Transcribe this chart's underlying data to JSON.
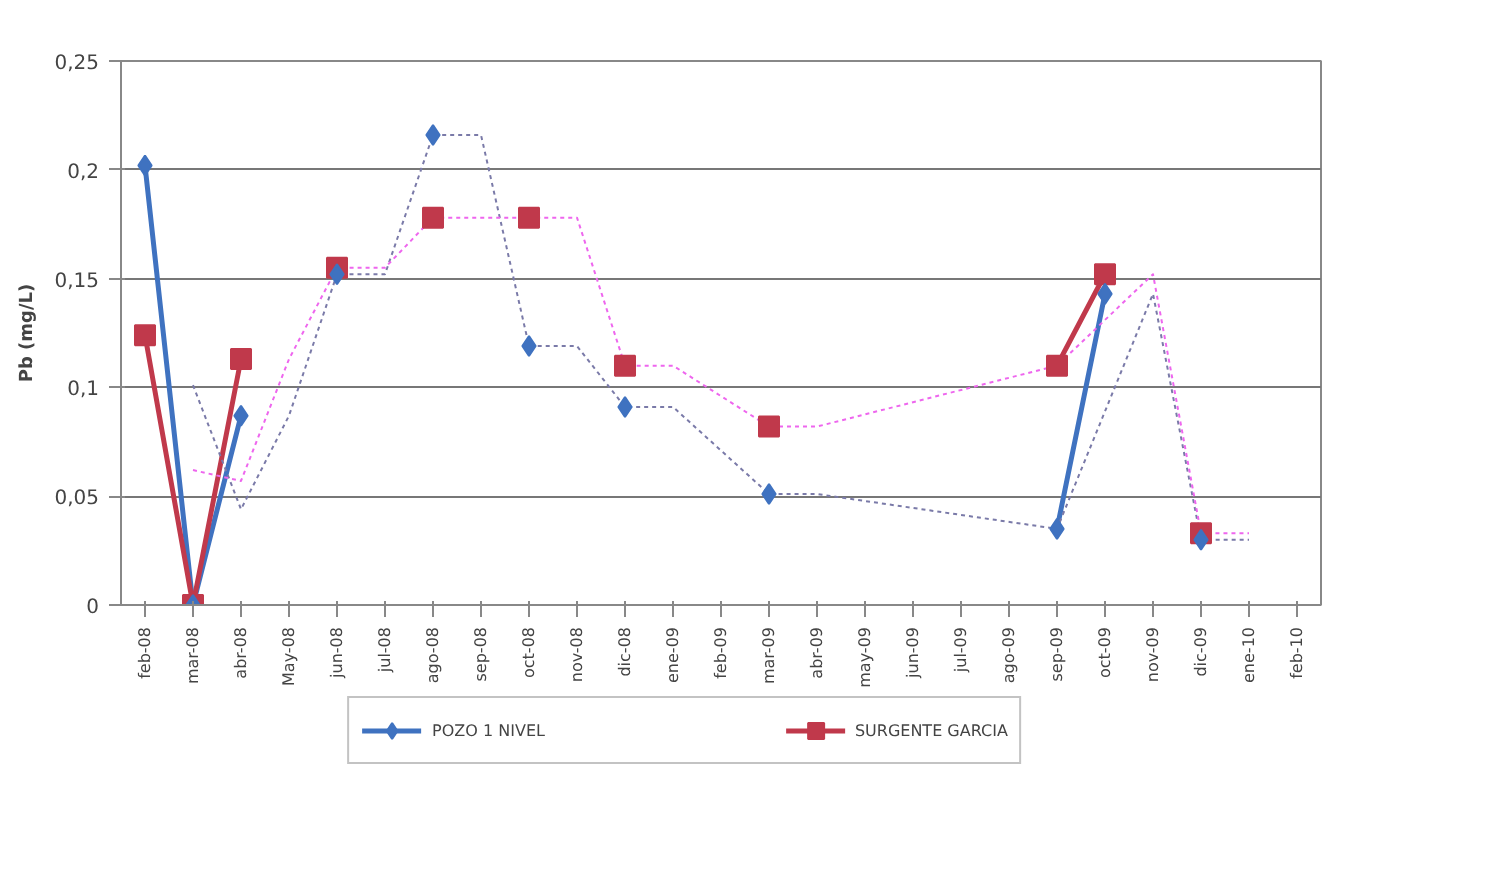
{
  "chart_data": {
    "type": "line",
    "ylabel": "Pb (mg/L)",
    "categories": [
      "feb-08",
      "mar-08",
      "abr-08",
      "May-08",
      "jun-08",
      "jul-08",
      "ago-08",
      "sep-08",
      "oct-08",
      "nov-08",
      "dic-08",
      "ene-09",
      "feb-09",
      "mar-09",
      "abr-09",
      "may-09",
      "jun-09",
      "jul-09",
      "ago-09",
      "sep-09",
      "oct-09",
      "nov-09",
      "dic-09",
      "ene-10",
      "feb-10"
    ],
    "series": [
      {
        "name": "POZO 1 NIVEL",
        "color": "#3f72c0",
        "marker": "diamond",
        "line_style": "solid",
        "values": [
          0.202,
          0,
          0.087,
          null,
          0.152,
          null,
          0.216,
          null,
          0.119,
          null,
          0.091,
          null,
          null,
          0.051,
          null,
          null,
          null,
          null,
          null,
          0.035,
          0.143,
          null,
          0.03,
          null,
          null
        ]
      },
      {
        "name": "SURGENTE GARCIA",
        "color": "#c0394b",
        "marker": "square",
        "line_style": "solid",
        "values": [
          0.124,
          0,
          0.113,
          null,
          0.155,
          null,
          0.178,
          null,
          0.178,
          null,
          0.11,
          null,
          null,
          0.082,
          null,
          null,
          null,
          null,
          null,
          0.11,
          0.152,
          null,
          0.033,
          null,
          null
        ]
      },
      {
        "color": "#7a7aa8",
        "marker": "none",
        "line_style": "dotted",
        "values": [
          null,
          0.101,
          0.044,
          0.087,
          0.152,
          0.152,
          0.216,
          0.216,
          0.119,
          0.119,
          0.091,
          0.091,
          null,
          0.051,
          0.051,
          null,
          null,
          null,
          null,
          0.035,
          null,
          0.143,
          0.03,
          0.03,
          null
        ]
      },
      {
        "color": "#ee66ee",
        "marker": "none",
        "line_style": "dotted",
        "values": [
          null,
          0.062,
          0.057,
          0.113,
          0.155,
          0.155,
          0.178,
          null,
          null,
          0.178,
          0.11,
          0.11,
          null,
          0.082,
          0.082,
          null,
          null,
          null,
          null,
          0.11,
          null,
          0.152,
          0.033,
          0.033,
          null
        ]
      }
    ],
    "ylim": [
      0,
      0.25
    ],
    "yticks": [
      0,
      {
        "value": 0.05,
        "label": "0,05"
      },
      {
        "value": 0.1,
        "label": "0,1"
      },
      {
        "value": 0.15,
        "label": "0,15"
      },
      {
        "value": 0.2,
        "label": "0,2"
      },
      {
        "value": 0.25,
        "label": "0,25"
      }
    ],
    "grid": "y",
    "legend": "bottom"
  }
}
